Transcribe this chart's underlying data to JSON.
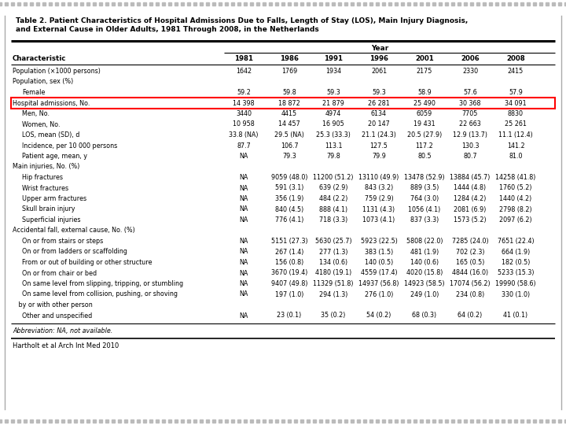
{
  "title_line1": "Table 2. Patient Characteristics of Hospital Admissions Due to Falls, Length of Stay (LOS), Main Injury Diagnosis,",
  "title_line2": "and External Cause in Older Adults, 1981 Through 2008, in the Netherlands",
  "years": [
    "1981",
    "1986",
    "1991",
    "1996",
    "2001",
    "2006",
    "2008"
  ],
  "col_header": "Year",
  "row_header": "Characteristic",
  "rows": [
    {
      "label": "Population (×1000 persons)",
      "indent": 0,
      "values": [
        "1642",
        "1769",
        "1934",
        "2061",
        "2175",
        "2330",
        "2415"
      ],
      "highlight": false
    },
    {
      "label": "Population, sex (%)",
      "indent": 0,
      "values": [
        "",
        "",
        "",
        "",
        "",
        "",
        ""
      ],
      "highlight": false
    },
    {
      "label": "Female",
      "indent": 1,
      "values": [
        "59.2",
        "59.8",
        "59.3",
        "59.3",
        "58.9",
        "57.6",
        "57.9"
      ],
      "highlight": false
    },
    {
      "label": "Hospital admissions, No.",
      "indent": 0,
      "values": [
        "14 398",
        "18 872",
        "21 879",
        "26 281",
        "25 490",
        "30 368",
        "34 091"
      ],
      "highlight": true
    },
    {
      "label": "Men, No.",
      "indent": 1,
      "values": [
        "3440",
        "4415",
        "4974",
        "6134",
        "6059",
        "7705",
        "8830"
      ],
      "highlight": false
    },
    {
      "label": "Women, No.",
      "indent": 1,
      "values": [
        "10 958",
        "14 457",
        "16 905",
        "20 147",
        "19 431",
        "22 663",
        "25 261"
      ],
      "highlight": false
    },
    {
      "label": "LOS, mean (SD), d",
      "indent": 1,
      "values": [
        "33.8 (NA)",
        "29.5 (NA)",
        "25.3 (33.3)",
        "21.1 (24.3)",
        "20.5 (27.9)",
        "12.9 (13.7)",
        "11.1 (12.4)"
      ],
      "highlight": false
    },
    {
      "label": "Incidence, per 10 000 persons",
      "indent": 1,
      "values": [
        "87.7",
        "106.7",
        "113.1",
        "127.5",
        "117.2",
        "130.3",
        "141.2"
      ],
      "highlight": false
    },
    {
      "label": "Patient age, mean, y",
      "indent": 1,
      "values": [
        "NA",
        "79.3",
        "79.8",
        "79.9",
        "80.5",
        "80.7",
        "81.0"
      ],
      "highlight": false
    },
    {
      "label": "Main injuries, No. (%)",
      "indent": 0,
      "values": [
        "",
        "",
        "",
        "",
        "",
        "",
        ""
      ],
      "highlight": false
    },
    {
      "label": "Hip fractures",
      "indent": 1,
      "values": [
        "NA",
        "9059 (48.0)",
        "11200 (51.2)",
        "13110 (49.9)",
        "13478 (52.9)",
        "13884 (45.7)",
        "14258 (41.8)"
      ],
      "highlight": false
    },
    {
      "label": "Wrist fractures",
      "indent": 1,
      "values": [
        "NA",
        "591 (3.1)",
        "639 (2.9)",
        "843 (3.2)",
        "889 (3.5)",
        "1444 (4.8)",
        "1760 (5.2)"
      ],
      "highlight": false
    },
    {
      "label": "Upper arm fractures",
      "indent": 1,
      "values": [
        "NA",
        "356 (1.9)",
        "484 (2.2)",
        "759 (2.9)",
        "764 (3.0)",
        "1284 (4.2)",
        "1440 (4.2)"
      ],
      "highlight": false
    },
    {
      "label": "Skull brain injury",
      "indent": 1,
      "values": [
        "NA",
        "840 (4.5)",
        "888 (4.1)",
        "1131 (4.3)",
        "1056 (4.1)",
        "2081 (6.9)",
        "2798 (8.2)"
      ],
      "highlight": false
    },
    {
      "label": "Superficial injuries",
      "indent": 1,
      "values": [
        "NA",
        "776 (4.1)",
        "718 (3.3)",
        "1073 (4.1)",
        "837 (3.3)",
        "1573 (5.2)",
        "2097 (6.2)"
      ],
      "highlight": false
    },
    {
      "label": "Accidental fall, external cause, No. (%)",
      "indent": 0,
      "values": [
        "",
        "",
        "",
        "",
        "",
        "",
        ""
      ],
      "highlight": false
    },
    {
      "label": "On or from stairs or steps",
      "indent": 1,
      "values": [
        "NA",
        "5151 (27.3)",
        "5630 (25.7)",
        "5923 (22.5)",
        "5808 (22.0)",
        "7285 (24.0)",
        "7651 (22.4)"
      ],
      "highlight": false
    },
    {
      "label": "On or from ladders or scaffolding",
      "indent": 1,
      "values": [
        "NA",
        "267 (1.4)",
        "277 (1.3)",
        "383 (1.5)",
        "481 (1.9)",
        "702 (2.3)",
        "664 (1.9)"
      ],
      "highlight": false
    },
    {
      "label": "From or out of building or other structure",
      "indent": 1,
      "values": [
        "NA",
        "156 (0.8)",
        "134 (0.6)",
        "140 (0.5)",
        "140 (0.6)",
        "165 (0.5)",
        "182 (0.5)"
      ],
      "highlight": false
    },
    {
      "label": "On or from chair or bed",
      "indent": 1,
      "values": [
        "NA",
        "3670 (19.4)",
        "4180 (19.1)",
        "4559 (17.4)",
        "4020 (15.8)",
        "4844 (16.0)",
        "5233 (15.3)"
      ],
      "highlight": false
    },
    {
      "label": "On same level from slipping, tripping, or stumbling",
      "indent": 1,
      "values": [
        "NA",
        "9407 (49.8)",
        "11329 (51.8)",
        "14937 (56.8)",
        "14923 (58.5)",
        "17074 (56.2)",
        "19990 (58.6)"
      ],
      "highlight": false
    },
    {
      "label": "On same level from collision, pushing, or shoving",
      "indent": 1,
      "values": [
        "NA",
        "197 (1.0)",
        "294 (1.3)",
        "276 (1.0)",
        "249 (1.0)",
        "234 (0.8)",
        "330 (1.0)"
      ],
      "highlight": false
    },
    {
      "label": "   by or with other person",
      "indent": 0,
      "values": [
        "",
        "",
        "",
        "",
        "",
        "",
        ""
      ],
      "highlight": false
    },
    {
      "label": "Other and unspecified",
      "indent": 1,
      "values": [
        "NA",
        "23 (0.1)",
        "35 (0.2)",
        "54 (0.2)",
        "68 (0.3)",
        "64 (0.2)",
        "41 (0.1)"
      ],
      "highlight": false
    }
  ],
  "abbreviation": "Abbreviation: NA, not available.",
  "footer": "Hartholt et al Arch Int Med 2010",
  "bg_color": "#FFFFFF",
  "dot_color": "#BBBBBB",
  "line_color": "#000000",
  "highlight_edge_color": "#FF0000",
  "text_color": "#000000"
}
